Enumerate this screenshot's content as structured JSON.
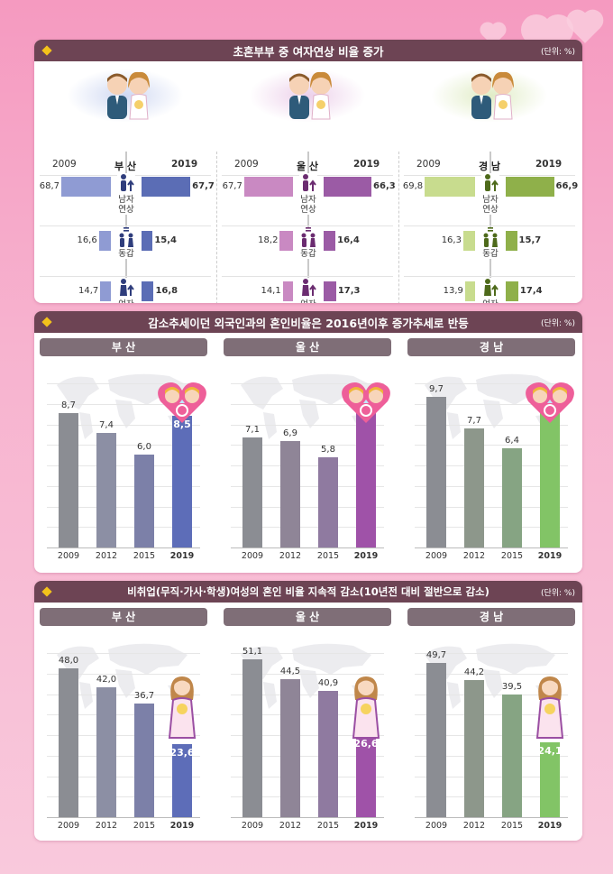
{
  "section1": {
    "title": "초혼부부 중 여자연상 비율 증가",
    "unit": "(단위: %)",
    "year_left": "2009",
    "year_right": "2019",
    "row_labels": [
      "남자\n연상",
      "동갑",
      "여자\n연상"
    ],
    "cities": [
      {
        "name": "부 산",
        "values2009": [
          "68,7",
          "16,6",
          "14,7"
        ],
        "values2019": [
          "67,7",
          "15,4",
          "16,8"
        ],
        "num2009": [
          68.7,
          16.6,
          14.7
        ],
        "num2019": [
          67.7,
          15.4,
          16.8
        ],
        "color2009": "#8f9bd3",
        "color2019": "#5b6db5",
        "icon_color": "#2f3d7c"
      },
      {
        "name": "울 산",
        "values2009": [
          "67,7",
          "18,2",
          "14,1"
        ],
        "values2019": [
          "66,3",
          "16,4",
          "17,3"
        ],
        "num2009": [
          67.7,
          18.2,
          14.1
        ],
        "num2019": [
          66.3,
          16.4,
          17.3
        ],
        "color2009": "#c989c2",
        "color2019": "#9b5ba5",
        "icon_color": "#6b2c70"
      },
      {
        "name": "경 남",
        "values2009": [
          "69,8",
          "16,3",
          "13,9"
        ],
        "values2019": [
          "66,9",
          "15,7",
          "17,4"
        ],
        "num2009": [
          69.8,
          16.3,
          13.9
        ],
        "num2019": [
          66.9,
          15.7,
          17.4
        ],
        "color2009": "#c8dc8e",
        "color2019": "#8fb04a",
        "icon_color": "#4e6a1b"
      }
    ]
  },
  "section2": {
    "title": "감소추세이던 외국인과의 혼인비율은 2016년이후 증가추세로 반등",
    "unit": "(단위: %)"
  },
  "section3": {
    "title": "비취업(무직·가사·학생)여성의 혼인 비율 지속적 감소(10년전 대비 절반으로 감소)",
    "unit": "(단위: %)"
  },
  "chart_data": [
    {
      "type": "bar",
      "title": "부 산",
      "categories": [
        "2009",
        "2012",
        "2015",
        "2019"
      ],
      "values": [
        8.7,
        7.4,
        6.0,
        8.5
      ],
      "labels": [
        "8,7",
        "7,4",
        "6,0",
        "8,5"
      ],
      "ylim": [
        0,
        12
      ],
      "colors": [
        "#8b8d93",
        "#8c8fa4",
        "#7c80a8",
        "#5d6db8"
      ]
    },
    {
      "type": "bar",
      "title": "울 산",
      "categories": [
        "2009",
        "2012",
        "2015",
        "2019"
      ],
      "values": [
        7.1,
        6.9,
        5.8,
        9.5
      ],
      "labels": [
        "7,1",
        "6,9",
        "5,8",
        "9,5"
      ],
      "ylim": [
        0,
        12
      ],
      "colors": [
        "#8b8d93",
        "#8f8597",
        "#8f7aa0",
        "#9f52a8"
      ]
    },
    {
      "type": "bar",
      "title": "경 남",
      "categories": [
        "2009",
        "2012",
        "2015",
        "2019"
      ],
      "values": [
        9.7,
        7.7,
        6.4,
        9.8
      ],
      "labels": [
        "9,7",
        "7,7",
        "6,4",
        "9,8"
      ],
      "ylim": [
        0,
        12
      ],
      "colors": [
        "#8b8d93",
        "#8d978b",
        "#86a483",
        "#82c466"
      ]
    },
    {
      "type": "bar",
      "title": "부 산",
      "categories": [
        "2009",
        "2012",
        "2015",
        "2019"
      ],
      "values": [
        48.0,
        42.0,
        36.7,
        23.6
      ],
      "labels": [
        "48,0",
        "42,0",
        "36,7",
        "23,6"
      ],
      "ylim": [
        0,
        60
      ],
      "colors": [
        "#8b8d93",
        "#8c8fa4",
        "#7c80a8",
        "#5d6db8"
      ]
    },
    {
      "type": "bar",
      "title": "울 산",
      "categories": [
        "2009",
        "2012",
        "2015",
        "2019"
      ],
      "values": [
        51.1,
        44.5,
        40.9,
        26.6
      ],
      "labels": [
        "51,1",
        "44,5",
        "40,9",
        "26,6"
      ],
      "ylim": [
        0,
        60
      ],
      "colors": [
        "#8b8d93",
        "#8f8597",
        "#8f7aa0",
        "#9f52a8"
      ]
    },
    {
      "type": "bar",
      "title": "경 남",
      "categories": [
        "2009",
        "2012",
        "2015",
        "2019"
      ],
      "values": [
        49.7,
        44.2,
        39.5,
        24.1
      ],
      "labels": [
        "49,7",
        "44,2",
        "39,5",
        "24,1"
      ],
      "ylim": [
        0,
        60
      ],
      "colors": [
        "#8b8d93",
        "#8d978b",
        "#86a483",
        "#82c466"
      ]
    }
  ]
}
